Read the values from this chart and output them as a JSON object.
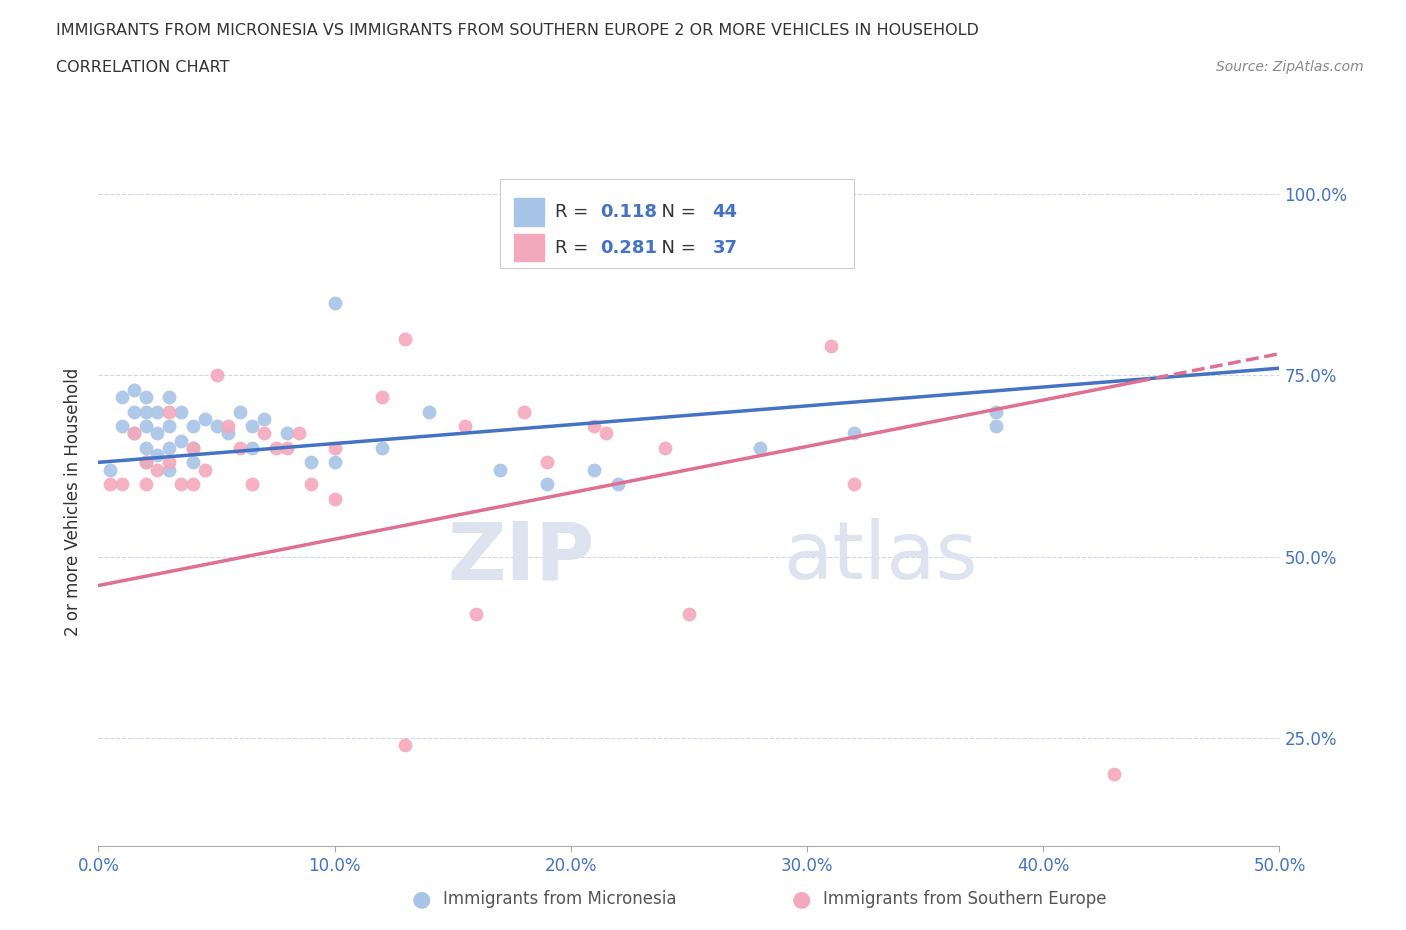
{
  "title": "IMMIGRANTS FROM MICRONESIA VS IMMIGRANTS FROM SOUTHERN EUROPE 2 OR MORE VEHICLES IN HOUSEHOLD",
  "subtitle": "CORRELATION CHART",
  "source": "Source: ZipAtlas.com",
  "ylabel": "2 or more Vehicles in Household",
  "xlim": [
    0,
    0.5
  ],
  "ylim": [
    0.1,
    1.05
  ],
  "blue_color": "#a8c4e6",
  "pink_color": "#f4a8bc",
  "blue_line_color": "#4472c4",
  "pink_line_color": "#e07090",
  "R_blue": 0.118,
  "N_blue": 44,
  "R_pink": 0.281,
  "N_pink": 37,
  "blue_x": [
    0.005,
    0.01,
    0.01,
    0.015,
    0.015,
    0.015,
    0.02,
    0.02,
    0.02,
    0.02,
    0.02,
    0.025,
    0.025,
    0.025,
    0.03,
    0.03,
    0.03,
    0.03,
    0.035,
    0.035,
    0.04,
    0.04,
    0.04,
    0.045,
    0.05,
    0.055,
    0.06,
    0.065,
    0.065,
    0.07,
    0.08,
    0.09,
    0.1,
    0.1,
    0.12,
    0.14,
    0.17,
    0.19,
    0.21,
    0.22,
    0.28,
    0.32,
    0.38,
    0.38
  ],
  "blue_y": [
    0.62,
    0.72,
    0.68,
    0.73,
    0.7,
    0.67,
    0.72,
    0.7,
    0.68,
    0.65,
    0.63,
    0.7,
    0.67,
    0.64,
    0.72,
    0.68,
    0.65,
    0.62,
    0.7,
    0.66,
    0.68,
    0.65,
    0.63,
    0.69,
    0.68,
    0.67,
    0.7,
    0.68,
    0.65,
    0.69,
    0.67,
    0.63,
    0.85,
    0.63,
    0.65,
    0.7,
    0.62,
    0.6,
    0.62,
    0.6,
    0.65,
    0.67,
    0.7,
    0.68
  ],
  "pink_x": [
    0.005,
    0.01,
    0.015,
    0.02,
    0.02,
    0.025,
    0.03,
    0.03,
    0.035,
    0.04,
    0.04,
    0.045,
    0.05,
    0.055,
    0.06,
    0.065,
    0.07,
    0.075,
    0.08,
    0.085,
    0.09,
    0.1,
    0.1,
    0.12,
    0.13,
    0.155,
    0.16,
    0.18,
    0.19,
    0.21,
    0.215,
    0.24,
    0.25,
    0.13,
    0.31,
    0.43,
    0.32
  ],
  "pink_y": [
    0.6,
    0.6,
    0.67,
    0.63,
    0.6,
    0.62,
    0.7,
    0.63,
    0.6,
    0.65,
    0.6,
    0.62,
    0.75,
    0.68,
    0.65,
    0.6,
    0.67,
    0.65,
    0.65,
    0.67,
    0.6,
    0.65,
    0.58,
    0.72,
    0.8,
    0.68,
    0.42,
    0.7,
    0.63,
    0.68,
    0.67,
    0.65,
    0.42,
    0.24,
    0.79,
    0.2,
    0.6
  ]
}
